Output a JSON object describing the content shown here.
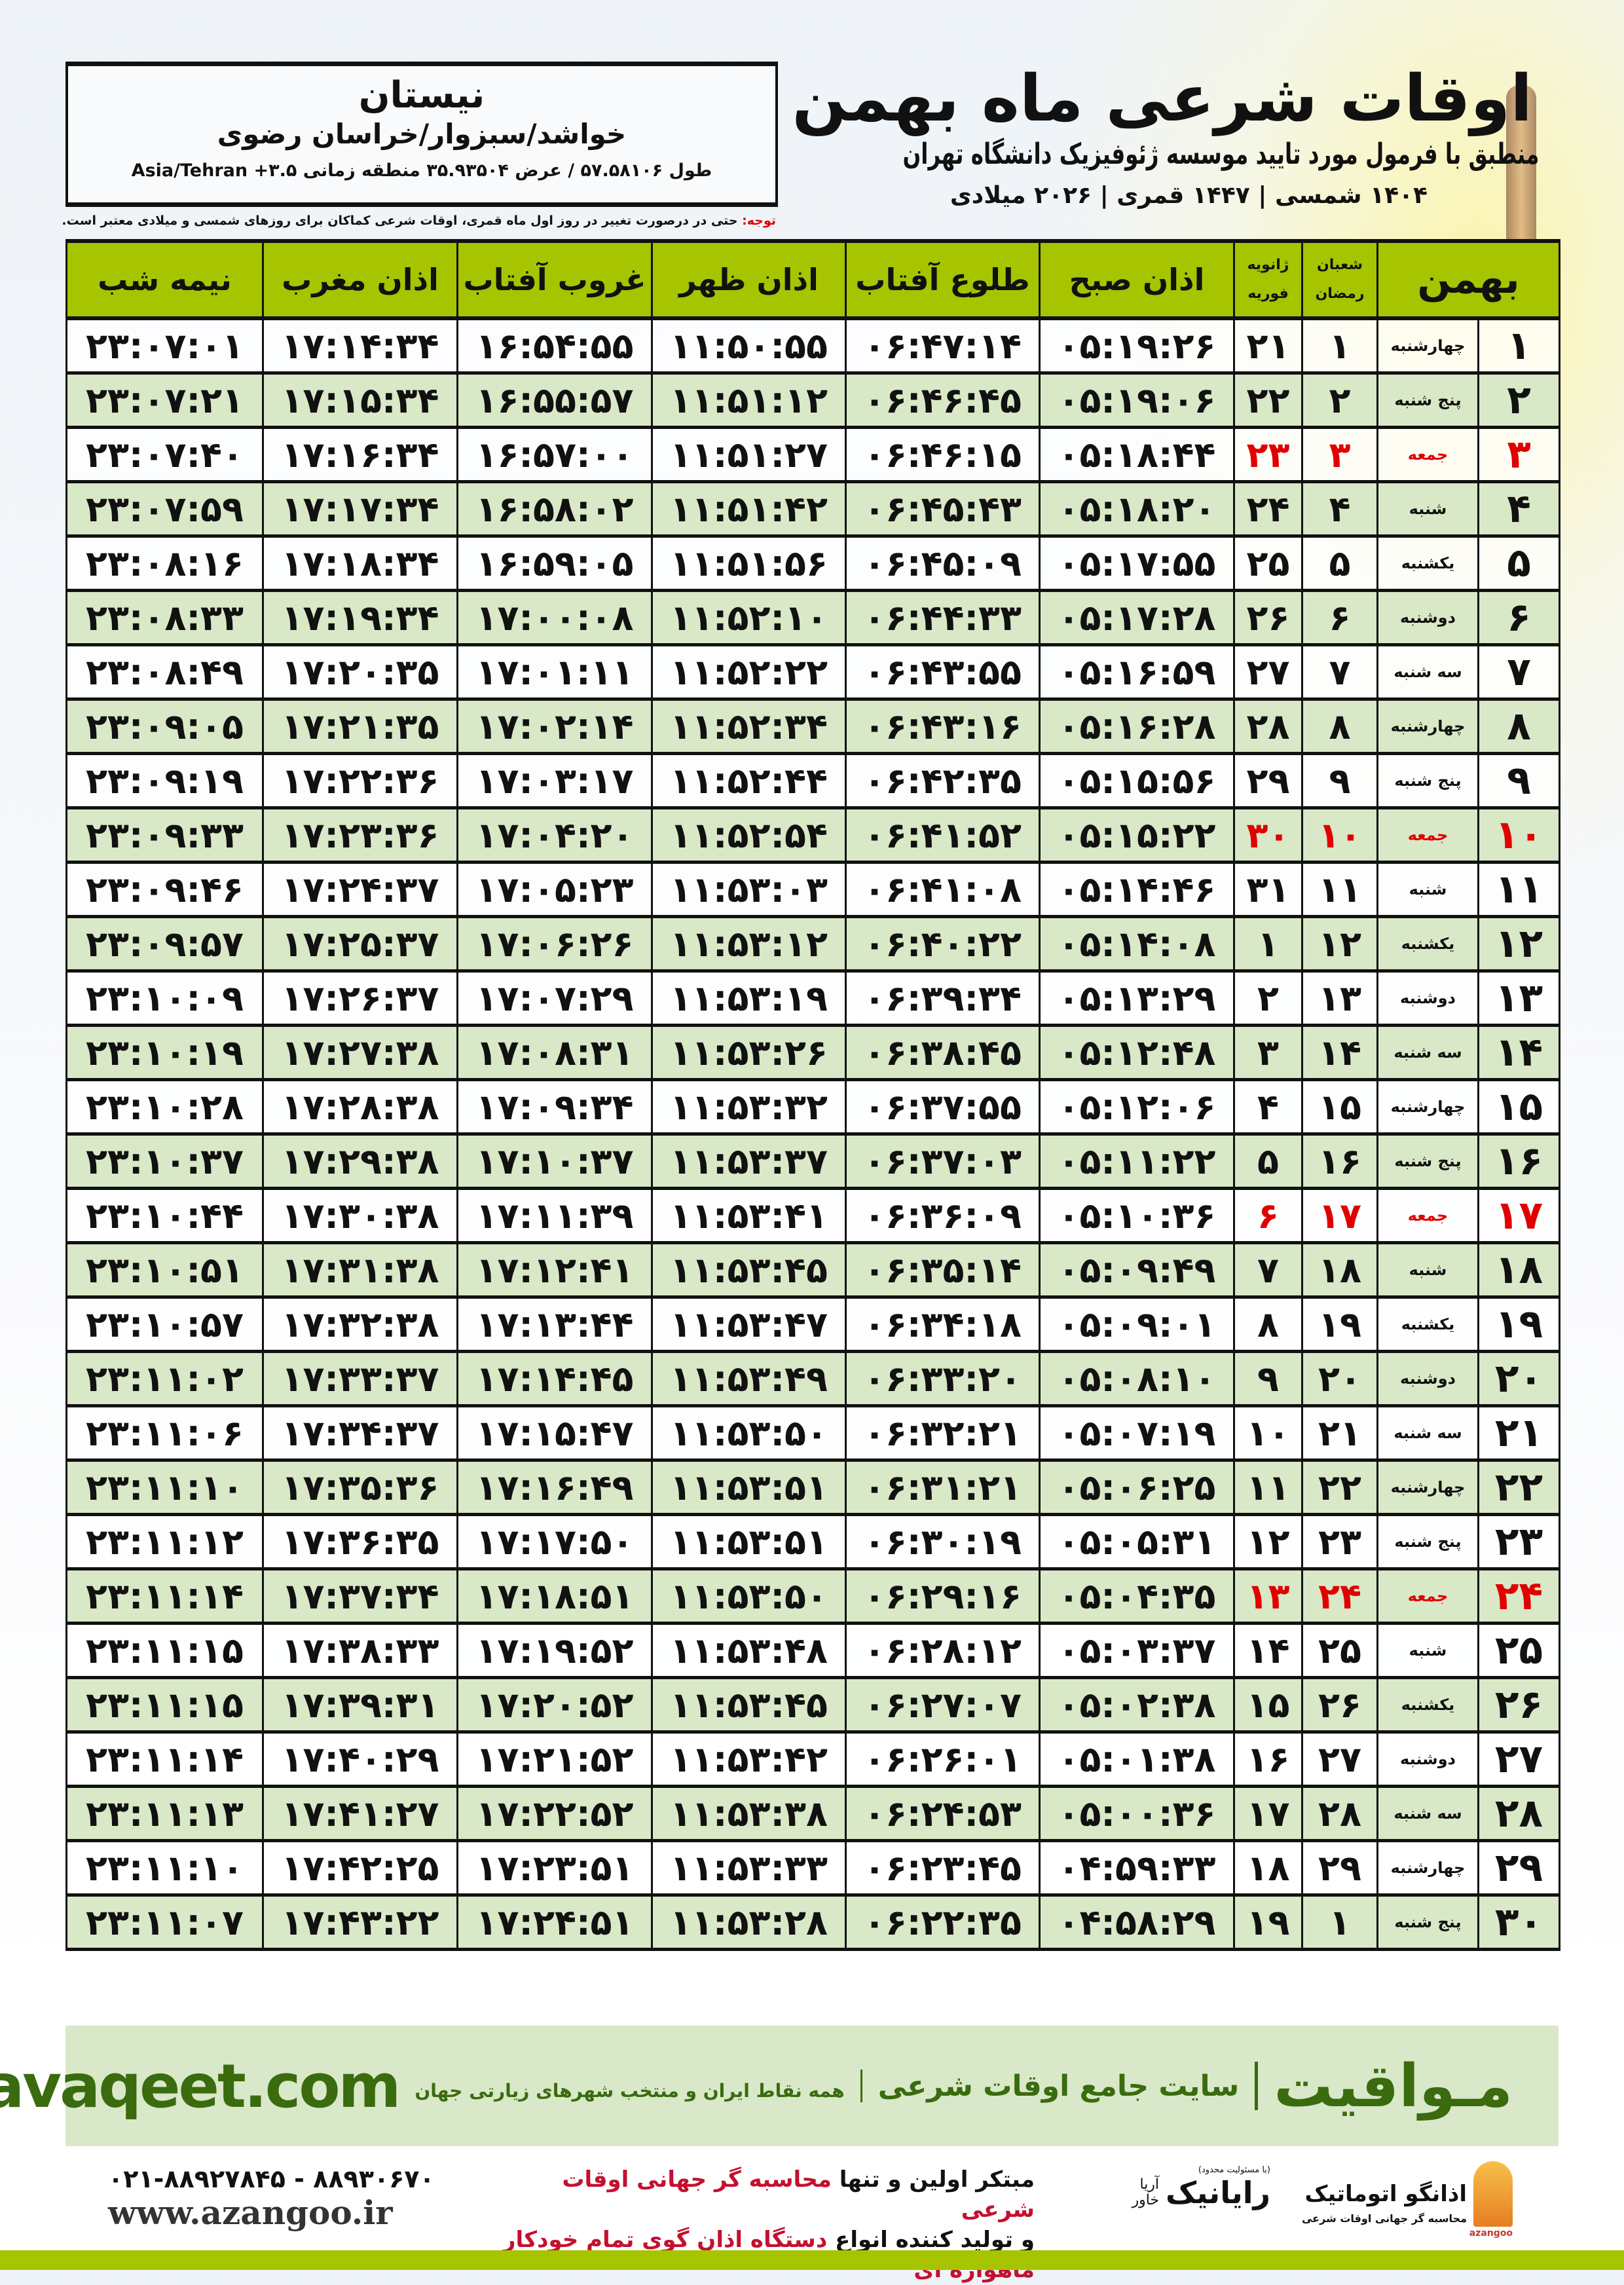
{
  "header": {
    "title": "اوقات شرعی ماه بهمن",
    "subtitle": "منطبق با فرمول مورد تایید موسسه ژئوفیزیک دانشگاه تهران",
    "dates": "۱۴۰۴ شمسی | ۱۴۴۷ قمری | ۲۰۲۶ میلادی"
  },
  "location": {
    "name": "نیستان",
    "path": "خواشد/سبزوار/خراسان رضوی",
    "coords": "طول ۵۷.۵۸۱۰۶ / عرض ۳۵.۹۳۵۰۴ منطقه زمانی ۳.۵+ Asia/Tehran"
  },
  "note": {
    "label": "توجه:",
    "text": " حتی در درصورت تغییر در روز اول ماه قمری، اوقات شرعی کماکان برای روزهای شمسی و میلادی معتبر است."
  },
  "colors": {
    "header_bg": "#a6c400",
    "even_row": "#d9e8c6",
    "friday": "#e00000",
    "brand": "#3a6b0f"
  },
  "table": {
    "columns": {
      "day": "بهمن",
      "hijri_top": "شعبان",
      "hijri_bottom": "رمضان",
      "greg_top": "ژانویه",
      "greg_bottom": "فوریه",
      "fajr": "اذان صبح",
      "sunrise": "طلوع آفتاب",
      "dhuhr": "اذان ظهر",
      "sunset": "غروب آفتاب",
      "maghrib": "اذان مغرب",
      "midnight": "نیمه شب"
    },
    "rows": [
      [
        "۱",
        "چهارشنبه",
        "۱",
        "۲۱",
        "۰۵:۱۹:۲۶",
        "۰۶:۴۷:۱۴",
        "۱۱:۵۰:۵۵",
        "۱۶:۵۴:۵۵",
        "۱۷:۱۴:۳۴",
        "۲۳:۰۷:۰۱"
      ],
      [
        "۲",
        "پنج شنبه",
        "۲",
        "۲۲",
        "۰۵:۱۹:۰۶",
        "۰۶:۴۶:۴۵",
        "۱۱:۵۱:۱۲",
        "۱۶:۵۵:۵۷",
        "۱۷:۱۵:۳۴",
        "۲۳:۰۷:۲۱"
      ],
      [
        "۳",
        "جمعه",
        "۳",
        "۲۳",
        "۰۵:۱۸:۴۴",
        "۰۶:۴۶:۱۵",
        "۱۱:۵۱:۲۷",
        "۱۶:۵۷:۰۰",
        "۱۷:۱۶:۳۴",
        "۲۳:۰۷:۴۰"
      ],
      [
        "۴",
        "شنبه",
        "۴",
        "۲۴",
        "۰۵:۱۸:۲۰",
        "۰۶:۴۵:۴۳",
        "۱۱:۵۱:۴۲",
        "۱۶:۵۸:۰۲",
        "۱۷:۱۷:۳۴",
        "۲۳:۰۷:۵۹"
      ],
      [
        "۵",
        "یکشنبه",
        "۵",
        "۲۵",
        "۰۵:۱۷:۵۵",
        "۰۶:۴۵:۰۹",
        "۱۱:۵۱:۵۶",
        "۱۶:۵۹:۰۵",
        "۱۷:۱۸:۳۴",
        "۲۳:۰۸:۱۶"
      ],
      [
        "۶",
        "دوشنبه",
        "۶",
        "۲۶",
        "۰۵:۱۷:۲۸",
        "۰۶:۴۴:۳۳",
        "۱۱:۵۲:۱۰",
        "۱۷:۰۰:۰۸",
        "۱۷:۱۹:۳۴",
        "۲۳:۰۸:۳۳"
      ],
      [
        "۷",
        "سه شنبه",
        "۷",
        "۲۷",
        "۰۵:۱۶:۵۹",
        "۰۶:۴۳:۵۵",
        "۱۱:۵۲:۲۲",
        "۱۷:۰۱:۱۱",
        "۱۷:۲۰:۳۵",
        "۲۳:۰۸:۴۹"
      ],
      [
        "۸",
        "چهارشنبه",
        "۸",
        "۲۸",
        "۰۵:۱۶:۲۸",
        "۰۶:۴۳:۱۶",
        "۱۱:۵۲:۳۴",
        "۱۷:۰۲:۱۴",
        "۱۷:۲۱:۳۵",
        "۲۳:۰۹:۰۵"
      ],
      [
        "۹",
        "پنج شنبه",
        "۹",
        "۲۹",
        "۰۵:۱۵:۵۶",
        "۰۶:۴۲:۳۵",
        "۱۱:۵۲:۴۴",
        "۱۷:۰۳:۱۷",
        "۱۷:۲۲:۳۶",
        "۲۳:۰۹:۱۹"
      ],
      [
        "۱۰",
        "جمعه",
        "۱۰",
        "۳۰",
        "۰۵:۱۵:۲۲",
        "۰۶:۴۱:۵۲",
        "۱۱:۵۲:۵۴",
        "۱۷:۰۴:۲۰",
        "۱۷:۲۳:۳۶",
        "۲۳:۰۹:۳۳"
      ],
      [
        "۱۱",
        "شنبه",
        "۱۱",
        "۳۱",
        "۰۵:۱۴:۴۶",
        "۰۶:۴۱:۰۸",
        "۱۱:۵۳:۰۳",
        "۱۷:۰۵:۲۳",
        "۱۷:۲۴:۳۷",
        "۲۳:۰۹:۴۶"
      ],
      [
        "۱۲",
        "یکشنبه",
        "۱۲",
        "۱",
        "۰۵:۱۴:۰۸",
        "۰۶:۴۰:۲۲",
        "۱۱:۵۳:۱۲",
        "۱۷:۰۶:۲۶",
        "۱۷:۲۵:۳۷",
        "۲۳:۰۹:۵۷"
      ],
      [
        "۱۳",
        "دوشنبه",
        "۱۳",
        "۲",
        "۰۵:۱۳:۲۹",
        "۰۶:۳۹:۳۴",
        "۱۱:۵۳:۱۹",
        "۱۷:۰۷:۲۹",
        "۱۷:۲۶:۳۷",
        "۲۳:۱۰:۰۹"
      ],
      [
        "۱۴",
        "سه شنبه",
        "۱۴",
        "۳",
        "۰۵:۱۲:۴۸",
        "۰۶:۳۸:۴۵",
        "۱۱:۵۳:۲۶",
        "۱۷:۰۸:۳۱",
        "۱۷:۲۷:۳۸",
        "۲۳:۱۰:۱۹"
      ],
      [
        "۱۵",
        "چهارشنبه",
        "۱۵",
        "۴",
        "۰۵:۱۲:۰۶",
        "۰۶:۳۷:۵۵",
        "۱۱:۵۳:۳۲",
        "۱۷:۰۹:۳۴",
        "۱۷:۲۸:۳۸",
        "۲۳:۱۰:۲۸"
      ],
      [
        "۱۶",
        "پنج شنبه",
        "۱۶",
        "۵",
        "۰۵:۱۱:۲۲",
        "۰۶:۳۷:۰۳",
        "۱۱:۵۳:۳۷",
        "۱۷:۱۰:۳۷",
        "۱۷:۲۹:۳۸",
        "۲۳:۱۰:۳۷"
      ],
      [
        "۱۷",
        "جمعه",
        "۱۷",
        "۶",
        "۰۵:۱۰:۳۶",
        "۰۶:۳۶:۰۹",
        "۱۱:۵۳:۴۱",
        "۱۷:۱۱:۳۹",
        "۱۷:۳۰:۳۸",
        "۲۳:۱۰:۴۴"
      ],
      [
        "۱۸",
        "شنبه",
        "۱۸",
        "۷",
        "۰۵:۰۹:۴۹",
        "۰۶:۳۵:۱۴",
        "۱۱:۵۳:۴۵",
        "۱۷:۱۲:۴۱",
        "۱۷:۳۱:۳۸",
        "۲۳:۱۰:۵۱"
      ],
      [
        "۱۹",
        "یکشنبه",
        "۱۹",
        "۸",
        "۰۵:۰۹:۰۱",
        "۰۶:۳۴:۱۸",
        "۱۱:۵۳:۴۷",
        "۱۷:۱۳:۴۴",
        "۱۷:۳۲:۳۸",
        "۲۳:۱۰:۵۷"
      ],
      [
        "۲۰",
        "دوشنبه",
        "۲۰",
        "۹",
        "۰۵:۰۸:۱۰",
        "۰۶:۳۳:۲۰",
        "۱۱:۵۳:۴۹",
        "۱۷:۱۴:۴۵",
        "۱۷:۳۳:۳۷",
        "۲۳:۱۱:۰۲"
      ],
      [
        "۲۱",
        "سه شنبه",
        "۲۱",
        "۱۰",
        "۰۵:۰۷:۱۹",
        "۰۶:۳۲:۲۱",
        "۱۱:۵۳:۵۰",
        "۱۷:۱۵:۴۷",
        "۱۷:۳۴:۳۷",
        "۲۳:۱۱:۰۶"
      ],
      [
        "۲۲",
        "چهارشنبه",
        "۲۲",
        "۱۱",
        "۰۵:۰۶:۲۵",
        "۰۶:۳۱:۲۱",
        "۱۱:۵۳:۵۱",
        "۱۷:۱۶:۴۹",
        "۱۷:۳۵:۳۶",
        "۲۳:۱۱:۱۰"
      ],
      [
        "۲۳",
        "پنج شنبه",
        "۲۳",
        "۱۲",
        "۰۵:۰۵:۳۱",
        "۰۶:۳۰:۱۹",
        "۱۱:۵۳:۵۱",
        "۱۷:۱۷:۵۰",
        "۱۷:۳۶:۳۵",
        "۲۳:۱۱:۱۲"
      ],
      [
        "۲۴",
        "جمعه",
        "۲۴",
        "۱۳",
        "۰۵:۰۴:۳۵",
        "۰۶:۲۹:۱۶",
        "۱۱:۵۳:۵۰",
        "۱۷:۱۸:۵۱",
        "۱۷:۳۷:۳۴",
        "۲۳:۱۱:۱۴"
      ],
      [
        "۲۵",
        "شنبه",
        "۲۵",
        "۱۴",
        "۰۵:۰۳:۳۷",
        "۰۶:۲۸:۱۲",
        "۱۱:۵۳:۴۸",
        "۱۷:۱۹:۵۲",
        "۱۷:۳۸:۳۳",
        "۲۳:۱۱:۱۵"
      ],
      [
        "۲۶",
        "یکشنبه",
        "۲۶",
        "۱۵",
        "۰۵:۰۲:۳۸",
        "۰۶:۲۷:۰۷",
        "۱۱:۵۳:۴۵",
        "۱۷:۲۰:۵۲",
        "۱۷:۳۹:۳۱",
        "۲۳:۱۱:۱۵"
      ],
      [
        "۲۷",
        "دوشنبه",
        "۲۷",
        "۱۶",
        "۰۵:۰۱:۳۸",
        "۰۶:۲۶:۰۱",
        "۱۱:۵۳:۴۲",
        "۱۷:۲۱:۵۲",
        "۱۷:۴۰:۲۹",
        "۲۳:۱۱:۱۴"
      ],
      [
        "۲۸",
        "سه شنبه",
        "۲۸",
        "۱۷",
        "۰۵:۰۰:۳۶",
        "۰۶:۲۴:۵۳",
        "۱۱:۵۳:۳۸",
        "۱۷:۲۲:۵۲",
        "۱۷:۴۱:۲۷",
        "۲۳:۱۱:۱۳"
      ],
      [
        "۲۹",
        "چهارشنبه",
        "۲۹",
        "۱۸",
        "۰۴:۵۹:۳۳",
        "۰۶:۲۳:۴۵",
        "۱۱:۵۳:۳۳",
        "۱۷:۲۳:۵۱",
        "۱۷:۴۲:۲۵",
        "۲۳:۱۱:۱۰"
      ],
      [
        "۳۰",
        "پنج شنبه",
        "۱",
        "۱۹",
        "۰۴:۵۸:۲۹",
        "۰۶:۲۲:۳۵",
        "۱۱:۵۳:۲۸",
        "۱۷:۲۴:۵۱",
        "۱۷:۴۳:۲۲",
        "۲۳:۱۱:۰۷"
      ]
    ],
    "friday_label": "جمعه"
  },
  "banner": {
    "brand": "مـواقیت",
    "slogan": "سایت جامع اوقات شرعی",
    "slogan2": "همه نقاط ایران و منتخب شهرهای زیارتی جهان",
    "site": "mavaqeet.com"
  },
  "footer": {
    "logo1_name": "اذانگو اتوماتیک",
    "logo1_sub": "محاسبه گر جهانی اوقات شرعی",
    "logo1_latin": "azangoo",
    "logo2_name": "رایانیک",
    "logo2_top": "(با مسئولیت محدود)",
    "logo2_side": "آریا خاور",
    "promo1_a": "مبتکر اولین و تنها ",
    "promo1_b": "محاسبه گر جهانی اوقات شرعی",
    "promo2_a": "و تولید کننده انواع ",
    "promo2_b": "دستگاه اذان گوی تمام خودکار ماهواره ای",
    "phone": "۰۲۱-۸۸۹۲۷۸۴۵ - ۸۸۹۳۰۶۷۰",
    "web": "www.azangoo.ir"
  }
}
